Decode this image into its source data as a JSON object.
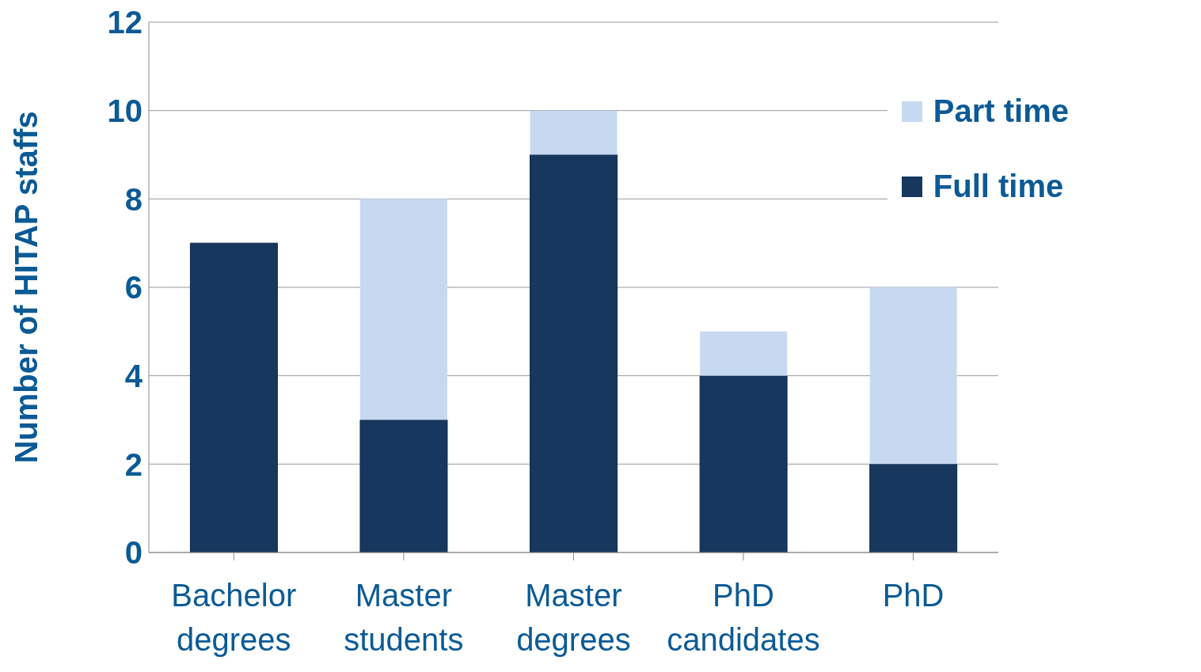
{
  "chart_data": {
    "type": "bar",
    "stacked": true,
    "ylabel": "Number of HITAP staffs",
    "categories": [
      "Bachelor degrees",
      "Master students",
      "Master degrees",
      "PhD candidates",
      "PhD"
    ],
    "series": [
      {
        "name": "Full time",
        "color": "#17375e",
        "values": [
          7,
          3,
          9,
          4,
          2
        ]
      },
      {
        "name": "Part time",
        "color": "#c6d9f1",
        "values": [
          null,
          5,
          1,
          1,
          4
        ]
      }
    ],
    "ylim": [
      0,
      12
    ],
    "yticks": [
      0,
      2,
      4,
      6,
      8,
      10,
      12
    ],
    "grid": "y",
    "legend": "top right"
  }
}
